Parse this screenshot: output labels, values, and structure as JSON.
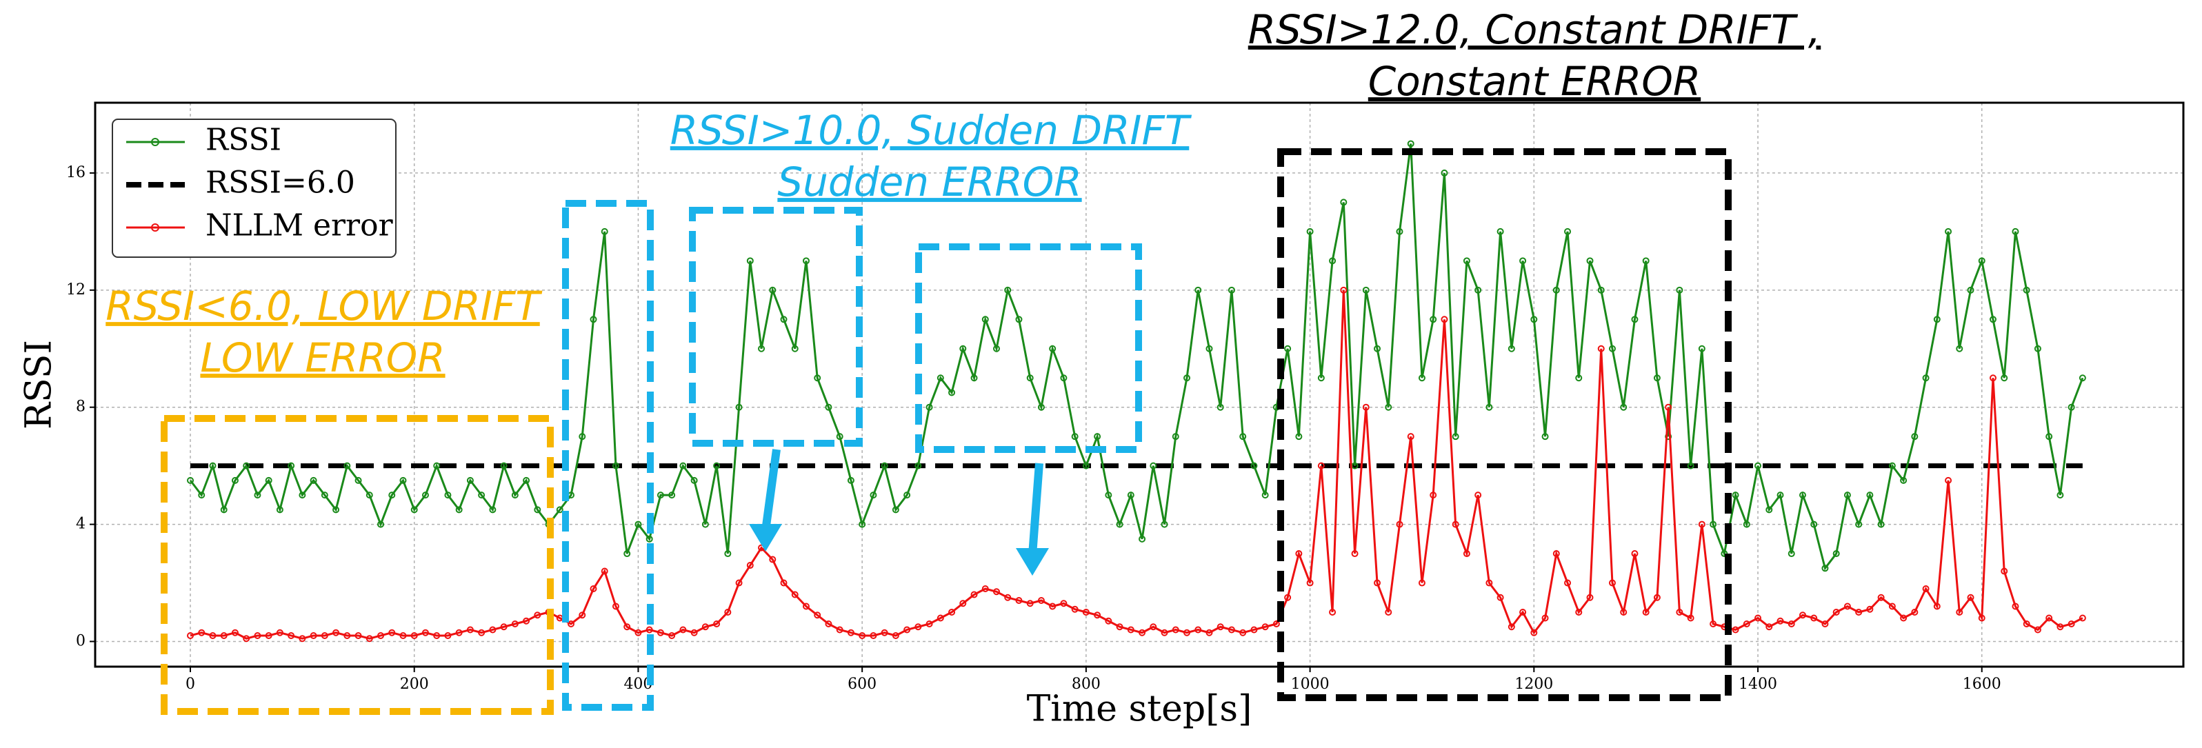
{
  "chart_data": {
    "type": "line",
    "xlabel": "Time step[s]",
    "ylabel": "RSSI",
    "xlim": [
      -85,
      1780
    ],
    "ylim": [
      -0.86,
      18.4
    ],
    "xticks": [
      0,
      200,
      400,
      600,
      800,
      1000,
      1200,
      1400,
      1600
    ],
    "yticks": [
      0,
      4,
      8,
      12,
      16
    ],
    "grid": true,
    "legend": "upper left",
    "x": [
      0,
      10,
      20,
      30,
      40,
      50,
      60,
      70,
      80,
      90,
      100,
      110,
      120,
      130,
      140,
      150,
      160,
      170,
      180,
      190,
      200,
      210,
      220,
      230,
      240,
      250,
      260,
      270,
      280,
      290,
      300,
      310,
      320,
      330,
      340,
      350,
      360,
      370,
      380,
      390,
      400,
      410,
      420,
      430,
      440,
      450,
      460,
      470,
      480,
      490,
      500,
      510,
      520,
      530,
      540,
      550,
      560,
      570,
      580,
      590,
      600,
      610,
      620,
      630,
      640,
      650,
      660,
      670,
      680,
      690,
      700,
      710,
      720,
      730,
      740,
      750,
      760,
      770,
      780,
      790,
      800,
      810,
      820,
      830,
      840,
      850,
      860,
      870,
      880,
      890,
      900,
      910,
      920,
      930,
      940,
      950,
      960,
      970,
      980,
      990,
      1000,
      1010,
      1020,
      1030,
      1040,
      1050,
      1060,
      1070,
      1080,
      1090,
      1100,
      1110,
      1120,
      1130,
      1140,
      1150,
      1160,
      1170,
      1180,
      1190,
      1200,
      1210,
      1220,
      1230,
      1240,
      1250,
      1260,
      1270,
      1280,
      1290,
      1300,
      1310,
      1320,
      1330,
      1340,
      1350,
      1360,
      1370,
      1380,
      1390,
      1400,
      1410,
      1420,
      1430,
      1440,
      1450,
      1460,
      1470,
      1480,
      1490,
      1500,
      1510,
      1520,
      1530,
      1540,
      1550,
      1560,
      1570,
      1580,
      1590,
      1600,
      1610,
      1620,
      1630,
      1640,
      1650,
      1660,
      1670,
      1680,
      1690
    ],
    "series": [
      {
        "name": "RSSI",
        "color": "#1a8a1a",
        "values": [
          5.5,
          5,
          6,
          4.5,
          5.5,
          6,
          5,
          5.5,
          4.5,
          6,
          5,
          5.5,
          5,
          4.5,
          6,
          5.5,
          5,
          4,
          5,
          5.5,
          4.5,
          5,
          6,
          5,
          4.5,
          5.5,
          5,
          4.5,
          6,
          5,
          5.5,
          4.5,
          4,
          4.5,
          5,
          7,
          11,
          14,
          6,
          3,
          4,
          3.5,
          5,
          5,
          6,
          5.5,
          4,
          6,
          3,
          8,
          13,
          10,
          12,
          11,
          10,
          13,
          9,
          8,
          7,
          5.5,
          4,
          5,
          6,
          4.5,
          5,
          6,
          8,
          9,
          8.5,
          10,
          9,
          11,
          10,
          12,
          11,
          9,
          8,
          10,
          9,
          7,
          6,
          7,
          5,
          4,
          5,
          3.5,
          6,
          4,
          7,
          9,
          12,
          10,
          8,
          12,
          7,
          6,
          5,
          8,
          10,
          7,
          14,
          9,
          13,
          15,
          6,
          12,
          10,
          8,
          14,
          17,
          9,
          11,
          16,
          7,
          13,
          12,
          8,
          14,
          10,
          13,
          11,
          7,
          12,
          14,
          9,
          13,
          12,
          10,
          8,
          11,
          13,
          9,
          7,
          12,
          6,
          10,
          4,
          3,
          5,
          4,
          6,
          4.5,
          5,
          3,
          5,
          4,
          2.5,
          3,
          5,
          4,
          5,
          4,
          6,
          5.5,
          7,
          9,
          11,
          14,
          10,
          12,
          13,
          11,
          9,
          14,
          12,
          10,
          7,
          5,
          8,
          9
        ]
      },
      {
        "name": "NLLM error",
        "color": "#ee1111",
        "values": [
          0.2,
          0.3,
          0.2,
          0.2,
          0.3,
          0.1,
          0.2,
          0.2,
          0.3,
          0.2,
          0.1,
          0.2,
          0.2,
          0.3,
          0.2,
          0.2,
          0.1,
          0.2,
          0.3,
          0.2,
          0.2,
          0.3,
          0.2,
          0.2,
          0.3,
          0.4,
          0.3,
          0.4,
          0.5,
          0.6,
          0.7,
          0.9,
          1.0,
          0.8,
          0.6,
          0.9,
          1.8,
          2.4,
          1.2,
          0.5,
          0.3,
          0.4,
          0.3,
          0.2,
          0.4,
          0.3,
          0.5,
          0.6,
          1.0,
          2.0,
          2.6,
          3.2,
          2.8,
          2.0,
          1.6,
          1.2,
          0.9,
          0.6,
          0.4,
          0.3,
          0.2,
          0.2,
          0.3,
          0.2,
          0.4,
          0.5,
          0.6,
          0.8,
          1.0,
          1.3,
          1.6,
          1.8,
          1.7,
          1.5,
          1.4,
          1.3,
          1.4,
          1.2,
          1.3,
          1.1,
          1.0,
          0.9,
          0.7,
          0.5,
          0.4,
          0.3,
          0.5,
          0.3,
          0.4,
          0.3,
          0.4,
          0.3,
          0.5,
          0.4,
          0.3,
          0.4,
          0.5,
          0.6,
          1.5,
          3,
          2,
          6,
          1,
          12,
          3,
          8,
          2,
          1,
          4,
          7,
          2,
          5,
          11,
          4,
          3,
          5,
          2,
          1.5,
          0.5,
          1,
          0.3,
          0.8,
          3,
          2,
          1,
          1.5,
          10,
          2,
          1,
          3,
          1,
          1.5,
          8,
          1,
          0.8,
          4,
          0.6,
          0.5,
          0.4,
          0.6,
          0.8,
          0.5,
          0.7,
          0.6,
          0.9,
          0.8,
          0.6,
          1.0,
          1.2,
          1.0,
          1.1,
          1.5,
          1.2,
          0.8,
          1.0,
          1.8,
          1.2,
          5.5,
          1.0,
          1.5,
          0.8,
          9.0,
          2.4,
          1.2,
          0.6,
          0.4,
          0.8,
          0.5,
          0.6,
          0.8
        ]
      }
    ],
    "reference_line": {
      "name": "RSSI=6.0",
      "value": 6,
      "color": "#000000"
    },
    "annotations": [
      {
        "lines": [
          "RSSI<6.0, LOW DRIFT",
          "LOW ERROR"
        ],
        "color": "#f7b500"
      },
      {
        "lines": [
          "RSSI>10.0, Sudden DRIFT",
          "Sudden ERROR"
        ],
        "color": "#1ab2ea"
      },
      {
        "lines": [
          "RSSI>12.0, Constant DRIFT ,",
          "Constant ERROR"
        ],
        "color": "#000000"
      }
    ]
  }
}
